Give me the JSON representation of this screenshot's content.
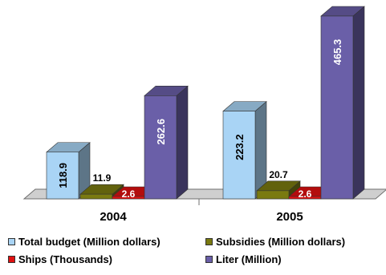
{
  "chart_data": {
    "type": "bar",
    "categories": [
      "2004",
      "2005"
    ],
    "series": [
      {
        "name": "Total budget (Million dollars)",
        "values": [
          118.9,
          223.2
        ],
        "color": "#a9d4f5",
        "labels": [
          "118.9",
          "223.2"
        ]
      },
      {
        "name": "Subsidies (Million dollars)",
        "values": [
          11.9,
          20.7
        ],
        "color": "#7a7a10",
        "labels": [
          "11.9",
          "20.7"
        ]
      },
      {
        "name": "Ships (Thousands)",
        "values": [
          2.6,
          2.6
        ],
        "color": "#e01010",
        "labels": [
          "2.6",
          "2.6"
        ]
      },
      {
        "name": "Liter (Million)",
        "values": [
          262.6,
          465.3
        ],
        "color": "#6a5fa8",
        "labels": [
          "262.6",
          "465.3"
        ]
      }
    ],
    "grid": false,
    "legend_position": "bottom"
  }
}
